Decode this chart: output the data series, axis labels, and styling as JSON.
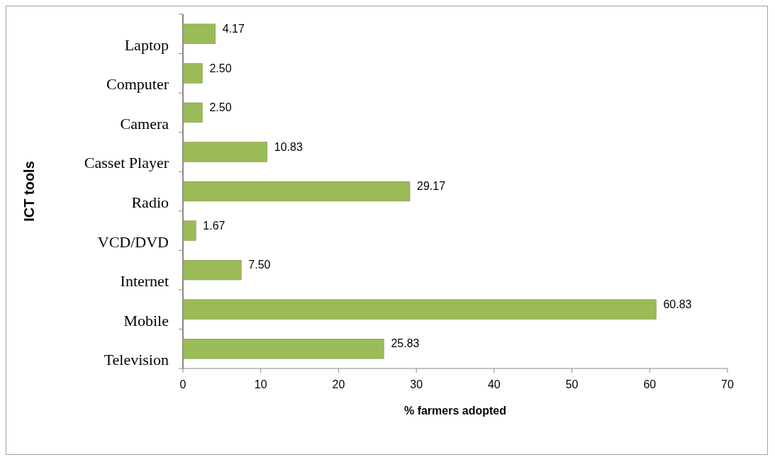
{
  "chart_data": {
    "type": "bar",
    "orientation": "horizontal",
    "xlabel": "% farmers adopted",
    "ylabel": "ICT tools",
    "categories": [
      "Laptop",
      "Computer",
      "Camera",
      "Casset Player",
      "Radio",
      "VCD/DVD",
      "Internet",
      "Mobile",
      "Television"
    ],
    "values": [
      4.17,
      2.5,
      2.5,
      10.83,
      29.17,
      1.67,
      7.5,
      60.83,
      25.83
    ],
    "value_labels": [
      "4.17",
      "2.50",
      "2.50",
      "10.83",
      "29.17",
      "1.67",
      "7.50",
      "60.83",
      "25.83"
    ],
    "color": "#9bbb59",
    "xlim": [
      0,
      70
    ],
    "xticks": [
      0,
      10,
      20,
      30,
      40,
      50,
      60,
      70
    ]
  }
}
